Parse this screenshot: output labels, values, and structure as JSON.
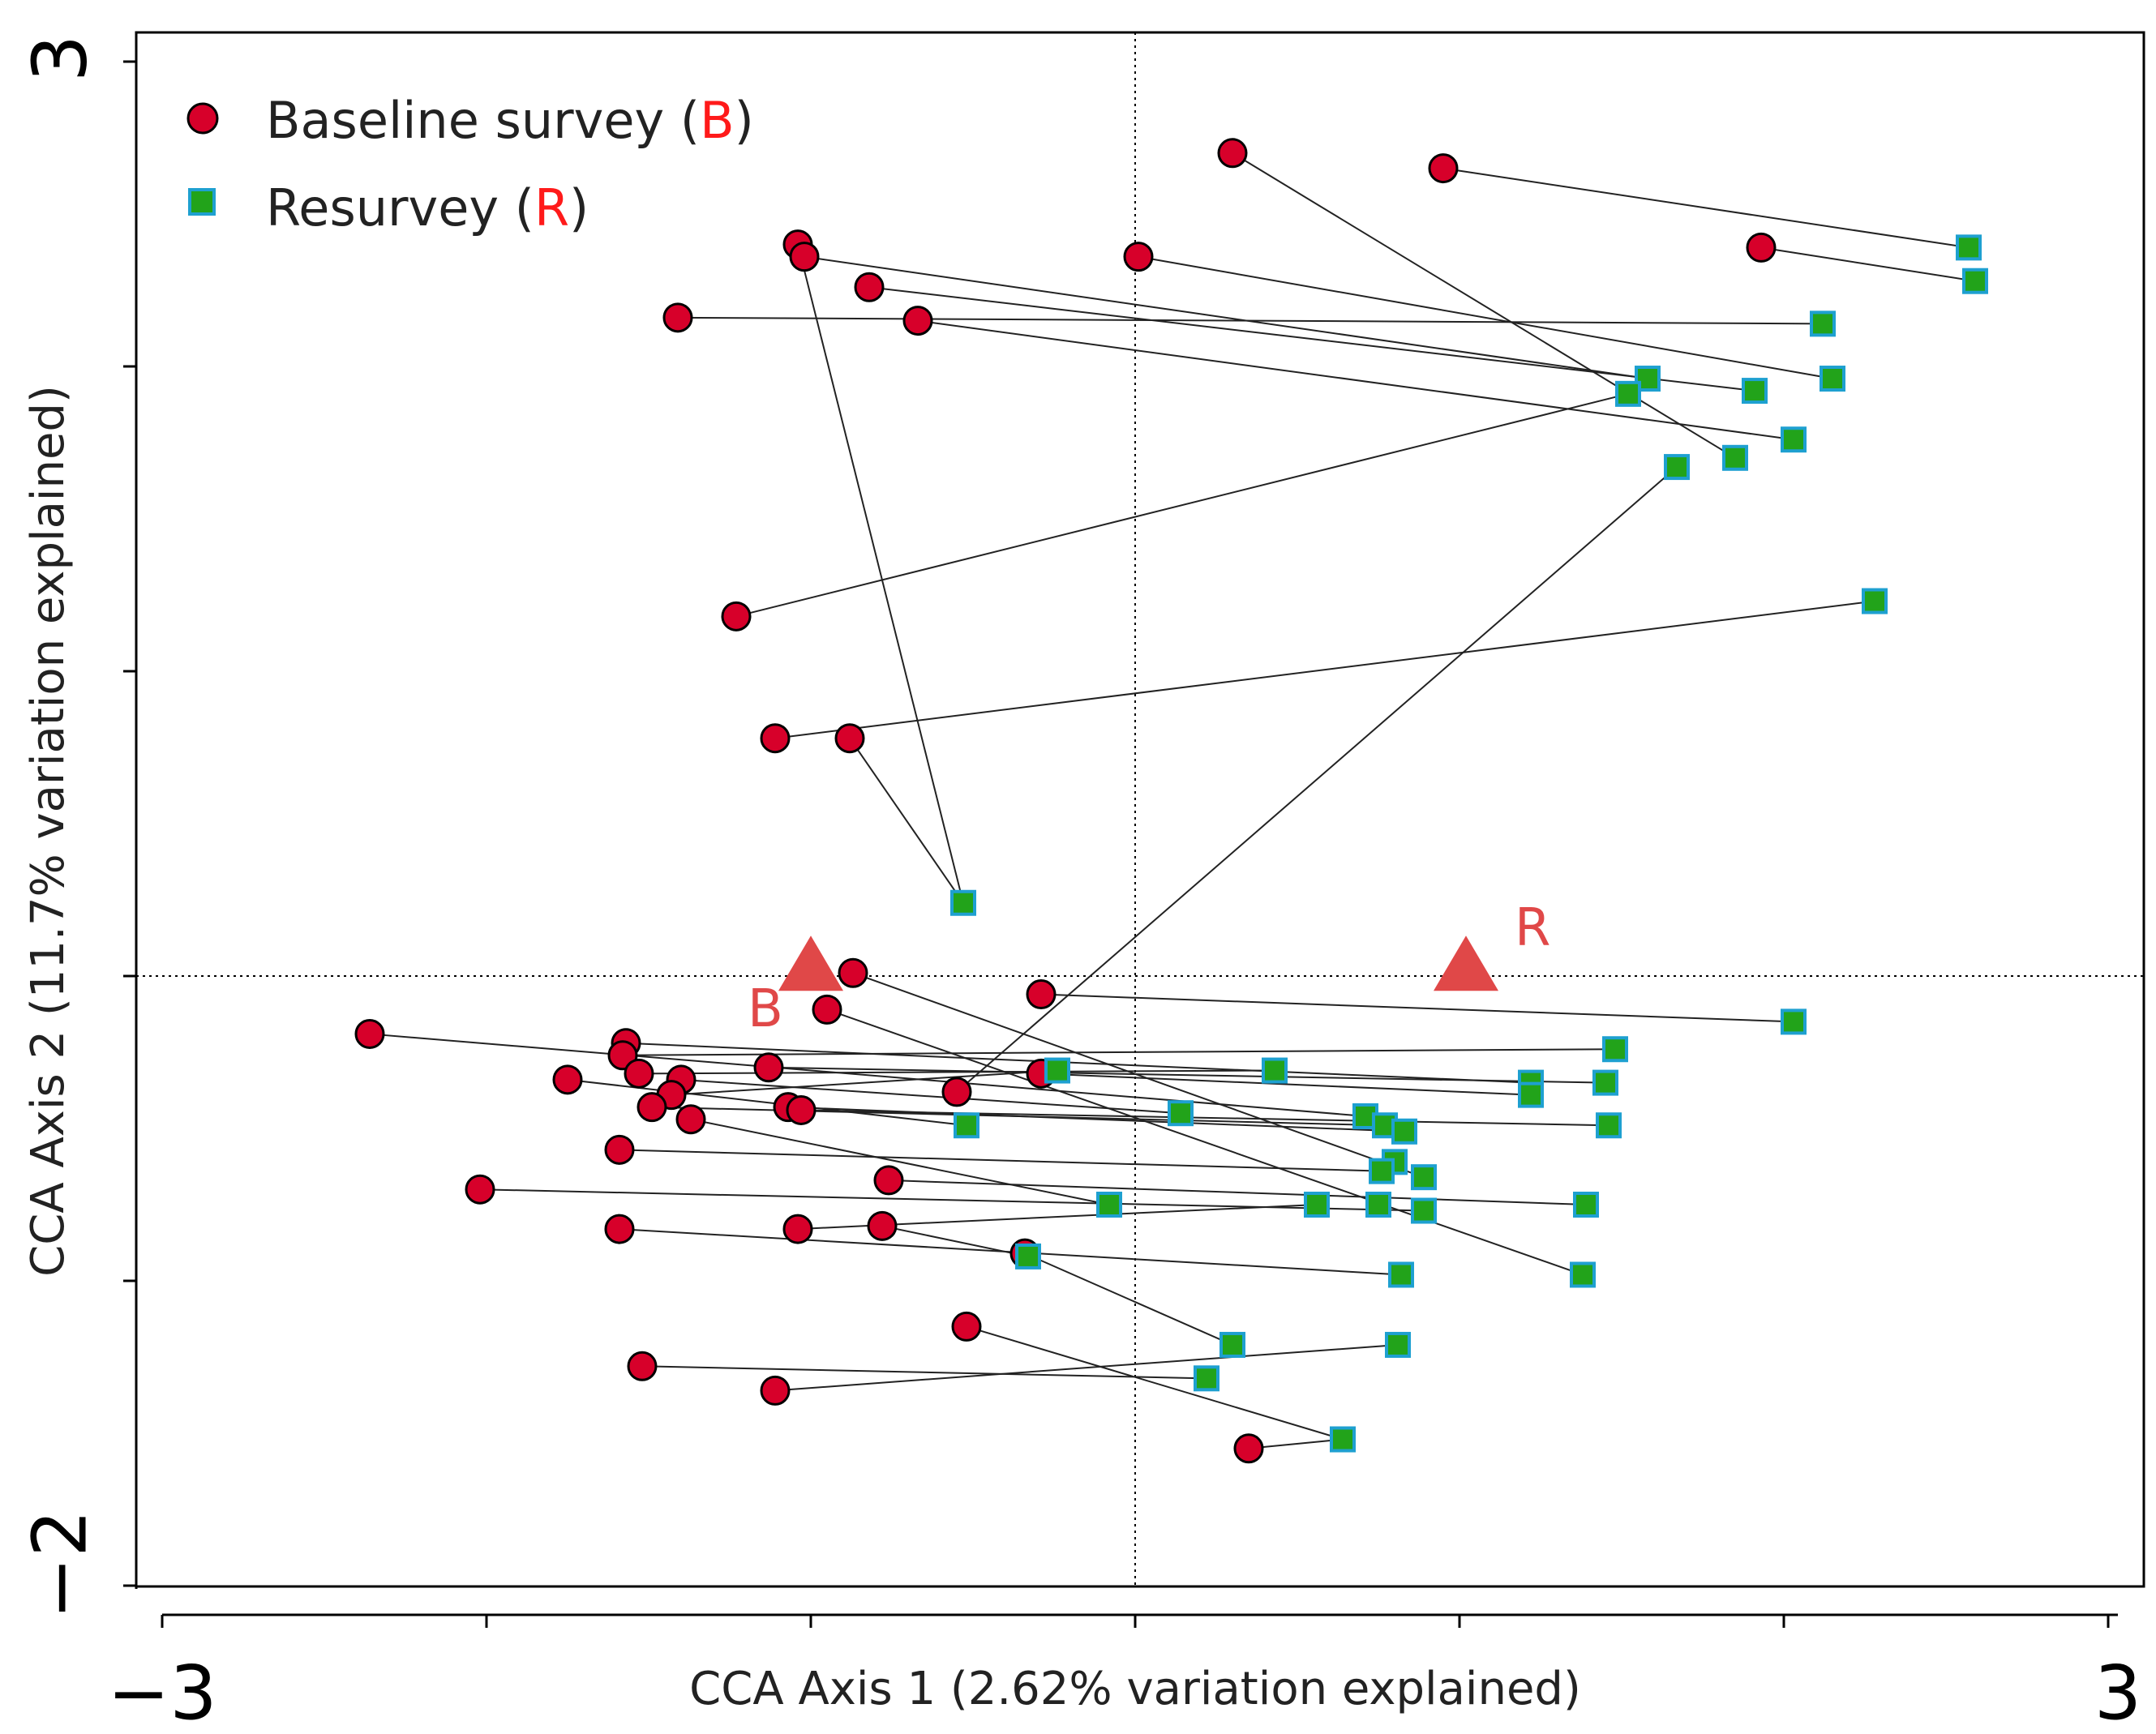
{
  "chart_data": {
    "type": "scatter",
    "title": "",
    "xlabel": "CCA Axis 1 (2.62% variation explained)",
    "ylabel": "CCA Axis 2 (11.7% variation explained)",
    "xlim": [
      -3,
      3
    ],
    "ylim": [
      -2,
      3
    ],
    "x_tick_labels": [
      "−3",
      "3"
    ],
    "y_tick_labels": [
      "3",
      "−2"
    ],
    "reference_lines": {
      "x": 0,
      "y": 0,
      "style": "dotted"
    },
    "legend": {
      "position": "top-left",
      "entries": [
        {
          "marker": "circle",
          "text": "Baseline survey (",
          "code": "B",
          "close": ")"
        },
        {
          "marker": "square",
          "text": "Resurvey (",
          "code": "R",
          "close": ")"
        }
      ]
    },
    "colors": {
      "baseline_fill": "#d7002a",
      "resurvey_fill": "#22a31a",
      "resurvey_stroke": "#1ea0d0",
      "centroid": "#e04848",
      "connector": "#222222",
      "code_text": "#ff1a1a"
    },
    "series": [
      {
        "name": "Baseline survey",
        "code": "B",
        "marker": "circle",
        "points": [
          [
            0.3,
            2.7
          ],
          [
            0.95,
            2.65
          ],
          [
            -1.04,
            2.4
          ],
          [
            -1.02,
            2.36
          ],
          [
            0.01,
            2.36
          ],
          [
            -0.82,
            2.26
          ],
          [
            -1.41,
            2.16
          ],
          [
            -0.67,
            2.15
          ],
          [
            -1.23,
            1.18
          ],
          [
            -1.11,
            0.78
          ],
          [
            -0.88,
            0.78
          ],
          [
            -0.87,
            0.01
          ],
          [
            -0.95,
            -0.11
          ],
          [
            -0.29,
            -0.06
          ],
          [
            -2.36,
            -0.19
          ],
          [
            -1.57,
            -0.22
          ],
          [
            -1.58,
            -0.26
          ],
          [
            -1.53,
            -0.32
          ],
          [
            -1.75,
            -0.34
          ],
          [
            -1.4,
            -0.34
          ],
          [
            -1.13,
            -0.3
          ],
          [
            -0.29,
            -0.32
          ],
          [
            -0.55,
            -0.38
          ],
          [
            -1.43,
            -0.39
          ],
          [
            -1.49,
            -0.43
          ],
          [
            -1.37,
            -0.47
          ],
          [
            -1.07,
            -0.43
          ],
          [
            -1.03,
            -0.44
          ],
          [
            -1.59,
            -0.57
          ],
          [
            -0.76,
            -0.67
          ],
          [
            -2.02,
            -0.7
          ],
          [
            -1.59,
            -0.83
          ],
          [
            -1.04,
            -0.83
          ],
          [
            -0.78,
            -0.82
          ],
          [
            -0.34,
            -0.91
          ],
          [
            -0.52,
            -1.15
          ],
          [
            -1.52,
            -1.28
          ],
          [
            -1.11,
            -1.36
          ],
          [
            0.35,
            -1.55
          ],
          [
            1.93,
            2.39
          ]
        ]
      },
      {
        "name": "Resurvey",
        "code": "R",
        "marker": "square",
        "points": [
          [
            2.57,
            2.39
          ],
          [
            2.59,
            2.28
          ],
          [
            2.12,
            2.14
          ],
          [
            1.58,
            1.96
          ],
          [
            1.91,
            1.92
          ],
          [
            2.15,
            1.96
          ],
          [
            1.52,
            1.91
          ],
          [
            2.03,
            1.76
          ],
          [
            1.85,
            1.7
          ],
          [
            1.67,
            1.67
          ],
          [
            2.28,
            1.23
          ],
          [
            -0.53,
            0.24
          ],
          [
            2.03,
            -0.15
          ],
          [
            1.48,
            -0.24
          ],
          [
            -0.24,
            -0.31
          ],
          [
            0.43,
            -0.31
          ],
          [
            1.22,
            -0.35
          ],
          [
            1.45,
            -0.35
          ],
          [
            1.22,
            -0.39
          ],
          [
            0.14,
            -0.45
          ],
          [
            0.71,
            -0.46
          ],
          [
            0.77,
            -0.49
          ],
          [
            0.83,
            -0.51
          ],
          [
            1.46,
            -0.49
          ],
          [
            -0.52,
            -0.49
          ],
          [
            0.8,
            -0.61
          ],
          [
            0.76,
            -0.64
          ],
          [
            0.89,
            -0.66
          ],
          [
            -0.08,
            -0.75
          ],
          [
            0.56,
            -0.75
          ],
          [
            0.75,
            -0.75
          ],
          [
            0.89,
            -0.77
          ],
          [
            1.39,
            -0.75
          ],
          [
            -0.33,
            -0.92
          ],
          [
            0.82,
            -0.98
          ],
          [
            1.38,
            -0.98
          ],
          [
            0.3,
            -1.21
          ],
          [
            0.81,
            -1.21
          ],
          [
            0.22,
            -1.32
          ],
          [
            0.64,
            -1.52
          ]
        ]
      },
      {
        "name": "Centroids",
        "marker": "triangle",
        "points": [
          [
            -1.0,
            0.01
          ],
          [
            1.02,
            0.01
          ]
        ],
        "labels": [
          "B",
          "R"
        ]
      }
    ],
    "connections": [
      [
        0,
        8
      ],
      [
        1,
        0
      ],
      [
        2,
        11
      ],
      [
        3,
        3
      ],
      [
        4,
        5
      ],
      [
        5,
        4
      ],
      [
        6,
        2
      ],
      [
        7,
        7
      ],
      [
        8,
        6
      ],
      [
        9,
        10
      ],
      [
        10,
        11
      ],
      [
        11,
        27
      ],
      [
        12,
        35
      ],
      [
        13,
        12
      ],
      [
        14,
        20
      ],
      [
        15,
        16
      ],
      [
        16,
        13
      ],
      [
        17,
        15
      ],
      [
        18,
        24
      ],
      [
        19,
        19
      ],
      [
        20,
        17
      ],
      [
        21,
        18
      ],
      [
        22,
        9
      ],
      [
        23,
        14
      ],
      [
        24,
        21
      ],
      [
        25,
        28
      ],
      [
        26,
        22
      ],
      [
        27,
        23
      ],
      [
        28,
        26
      ],
      [
        29,
        32
      ],
      [
        30,
        31
      ],
      [
        31,
        34
      ],
      [
        32,
        29
      ],
      [
        33,
        33
      ],
      [
        34,
        36
      ],
      [
        35,
        39
      ],
      [
        36,
        38
      ],
      [
        37,
        37
      ],
      [
        38,
        39
      ],
      [
        39,
        1
      ]
    ]
  }
}
